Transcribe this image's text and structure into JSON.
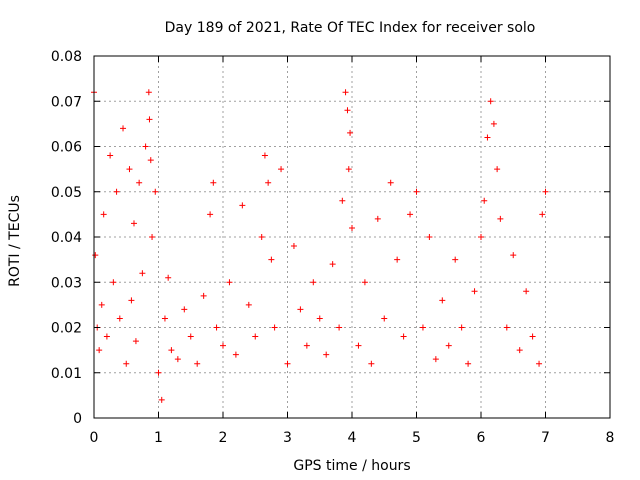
{
  "chart_data": {
    "type": "scatter",
    "title": "Day 189 of 2021, Rate Of TEC Index for receiver solo",
    "xlabel": "GPS time / hours",
    "ylabel": "ROTI / TECUs",
    "xlim": [
      0,
      8
    ],
    "ylim": [
      0,
      0.08
    ],
    "grid": true,
    "marker": "+",
    "color": "#ff0000",
    "x_ticks": [
      "0",
      "1",
      "2",
      "3",
      "4",
      "5",
      "6",
      "7",
      "8"
    ],
    "y_ticks": [
      "0",
      "0.01",
      "0.02",
      "0.03",
      "0.04",
      "0.05",
      "0.06",
      "0.07",
      "0.08"
    ],
    "series": [
      {
        "name": "ROTI",
        "x": [
          0.0,
          0.02,
          0.05,
          0.08,
          0.12,
          0.15,
          0.2,
          0.25,
          0.3,
          0.35,
          0.4,
          0.45,
          0.5,
          0.55,
          0.58,
          0.62,
          0.65,
          0.7,
          0.75,
          0.8,
          0.85,
          0.86,
          0.88,
          0.9,
          0.95,
          1.0,
          1.05,
          1.1,
          1.15,
          1.2,
          1.3,
          1.4,
          1.5,
          1.6,
          1.7,
          1.8,
          1.85,
          1.9,
          2.0,
          2.1,
          2.2,
          2.3,
          2.4,
          2.5,
          2.6,
          2.65,
          2.7,
          2.75,
          2.8,
          2.9,
          3.0,
          3.1,
          3.2,
          3.3,
          3.4,
          3.5,
          3.6,
          3.7,
          3.8,
          3.85,
          3.9,
          3.93,
          3.95,
          3.97,
          4.0,
          4.1,
          4.2,
          4.3,
          4.4,
          4.5,
          4.6,
          4.7,
          4.8,
          4.9,
          5.0,
          5.1,
          5.2,
          5.3,
          5.4,
          5.5,
          5.6,
          5.7,
          5.8,
          5.9,
          6.0,
          6.05,
          6.1,
          6.15,
          6.2,
          6.25,
          6.3,
          6.4,
          6.5,
          6.6,
          6.7,
          6.8,
          6.9,
          6.95,
          7.0
        ],
        "y": [
          0.072,
          0.036,
          0.02,
          0.015,
          0.025,
          0.045,
          0.018,
          0.058,
          0.03,
          0.05,
          0.022,
          0.064,
          0.012,
          0.055,
          0.026,
          0.043,
          0.017,
          0.052,
          0.032,
          0.06,
          0.072,
          0.066,
          0.057,
          0.04,
          0.05,
          0.01,
          0.004,
          0.022,
          0.031,
          0.015,
          0.013,
          0.024,
          0.018,
          0.012,
          0.027,
          0.045,
          0.052,
          0.02,
          0.016,
          0.03,
          0.014,
          0.047,
          0.025,
          0.018,
          0.04,
          0.058,
          0.052,
          0.035,
          0.02,
          0.055,
          0.012,
          0.038,
          0.024,
          0.016,
          0.03,
          0.022,
          0.014,
          0.034,
          0.02,
          0.048,
          0.072,
          0.068,
          0.055,
          0.063,
          0.042,
          0.016,
          0.03,
          0.012,
          0.044,
          0.022,
          0.052,
          0.035,
          0.018,
          0.045,
          0.05,
          0.02,
          0.04,
          0.013,
          0.026,
          0.016,
          0.035,
          0.02,
          0.012,
          0.028,
          0.04,
          0.048,
          0.062,
          0.07,
          0.065,
          0.055,
          0.044,
          0.02,
          0.036,
          0.015,
          0.028,
          0.018,
          0.012,
          0.045,
          0.05
        ]
      }
    ]
  }
}
